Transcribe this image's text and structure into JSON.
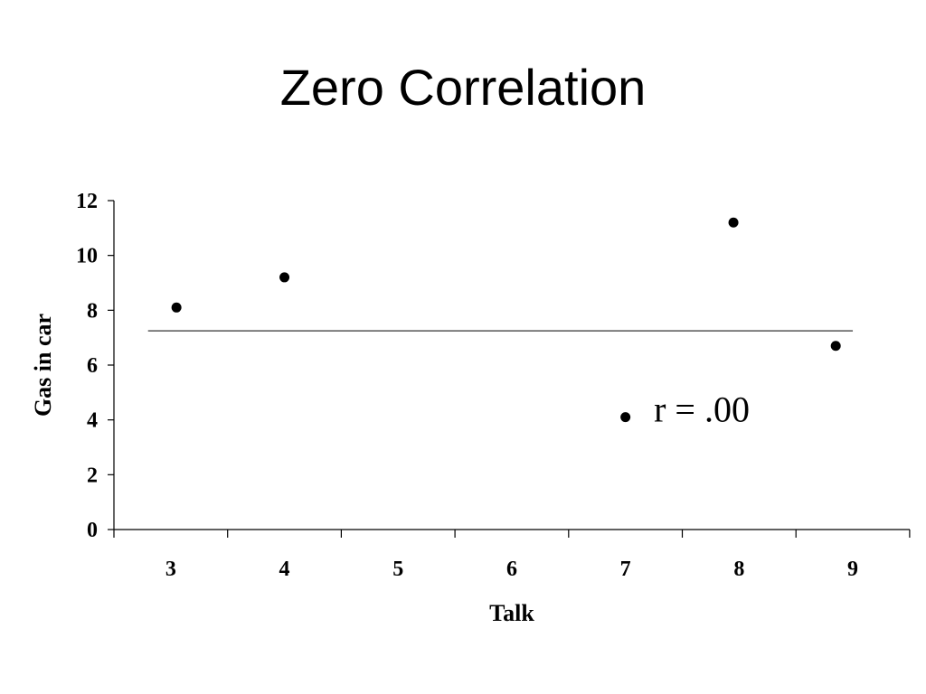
{
  "slide": {
    "title": "Zero Correlation"
  },
  "chart_data": {
    "type": "scatter",
    "title": "",
    "xlabel": "Talk",
    "ylabel": "Gas in car",
    "x_ticks": [
      "3",
      "4",
      "5",
      "6",
      "7",
      "8",
      "9"
    ],
    "y_ticks": [
      "0",
      "2",
      "4",
      "6",
      "8",
      "10",
      "12"
    ],
    "xlim": [
      2.5,
      9.5
    ],
    "ylim": [
      0,
      12
    ],
    "grid": false,
    "legend": "none",
    "points": [
      {
        "x": 3.05,
        "y": 8.1
      },
      {
        "x": 4.0,
        "y": 9.2
      },
      {
        "x": 7.0,
        "y": 4.1
      },
      {
        "x": 7.95,
        "y": 11.2
      },
      {
        "x": 8.85,
        "y": 6.7
      }
    ],
    "trend_line": {
      "x_start": 2.8,
      "x_end": 9.0,
      "y": 7.25
    },
    "annotation": {
      "text": "r = .00",
      "x": 7.25,
      "y": 4.4
    },
    "colors": {
      "points": "#000000",
      "trend_line": "#555555",
      "axes": "#000000"
    }
  }
}
